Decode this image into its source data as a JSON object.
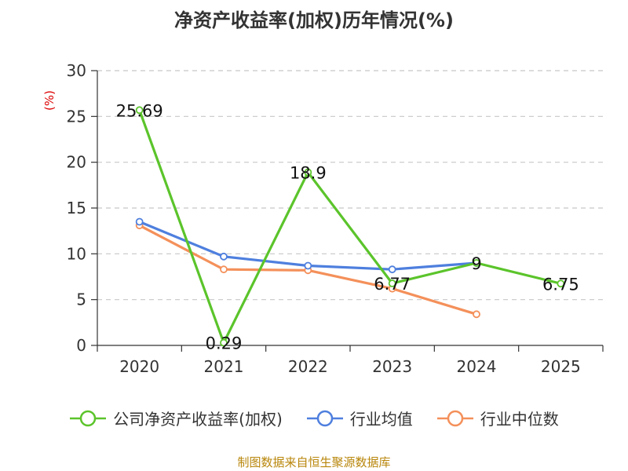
{
  "chart_data": {
    "type": "line",
    "title": "净资产收益率(加权)历年情况(%)",
    "ylabel": "(%)",
    "xlabel": "",
    "categories": [
      "2020",
      "2021",
      "2022",
      "2023",
      "2024",
      "2025"
    ],
    "ylim": [
      0,
      30
    ],
    "yticks": [
      0,
      5,
      10,
      15,
      20,
      25,
      30
    ],
    "grid": true,
    "legend_position": "bottom",
    "series": [
      {
        "name": "公司净资产收益率(加权)",
        "color": "#5bc42b",
        "values": [
          25.69,
          0.29,
          18.9,
          6.77,
          9,
          6.75
        ],
        "labels": [
          "25.69",
          "0.29",
          "18.9",
          "6.77",
          "9",
          "6.75"
        ]
      },
      {
        "name": "行业均值",
        "color": "#4e7fde",
        "values": [
          13.5,
          9.7,
          8.7,
          8.3,
          9.0,
          null
        ],
        "labels": []
      },
      {
        "name": "行业中位数",
        "color": "#f4905a",
        "values": [
          13.1,
          8.3,
          8.2,
          6.2,
          3.4,
          null
        ],
        "labels": []
      }
    ]
  },
  "footer": "制图数据来自恒生聚源数据库"
}
